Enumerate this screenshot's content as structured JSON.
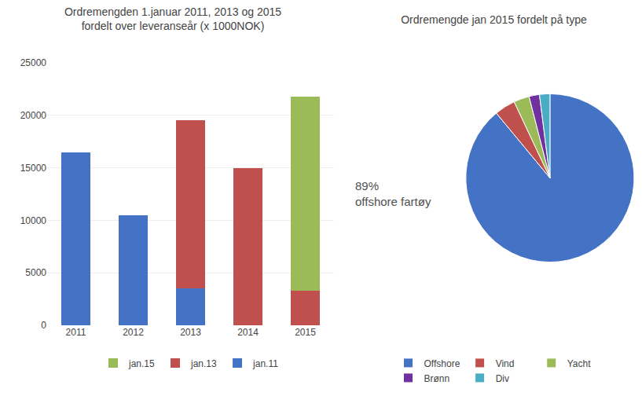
{
  "chart_data": [
    {
      "type": "bar",
      "title": "Ordremengden 1.januar 2011, 2013 og 2015",
      "subtitle": "fordelt over leveranseår (x 1000NOK)",
      "categories": [
        "2011",
        "2012",
        "2013",
        "2014",
        "2015"
      ],
      "series": [
        {
          "name": "jan.11",
          "color": "#4472C4",
          "values": [
            16500,
            10500,
            3500,
            0,
            0
          ]
        },
        {
          "name": "jan.13",
          "color": "#C0504D",
          "values": [
            0,
            0,
            16000,
            15000,
            3300
          ]
        },
        {
          "name": "jan.15",
          "color": "#9BBB59",
          "values": [
            0,
            0,
            0,
            0,
            18500
          ]
        }
      ],
      "stacked": true,
      "ylim": [
        0,
        25000
      ],
      "yticks": [
        0,
        5000,
        10000,
        15000,
        20000,
        25000
      ],
      "grid": true,
      "legend": "bottom"
    },
    {
      "type": "pie",
      "title": "Ordremengde jan 2015 fordelt på type",
      "categories": [
        "Offshore",
        "Vind",
        "Yacht",
        "Brønn",
        "Div"
      ],
      "values": [
        89,
        4,
        3,
        2,
        2
      ],
      "colors": [
        "#4472C4",
        "#C0504D",
        "#9BBB59",
        "#7030A0",
        "#4BACC6"
      ],
      "annotation": "89%\noffshore fartøy",
      "legend": "bottom"
    }
  ]
}
